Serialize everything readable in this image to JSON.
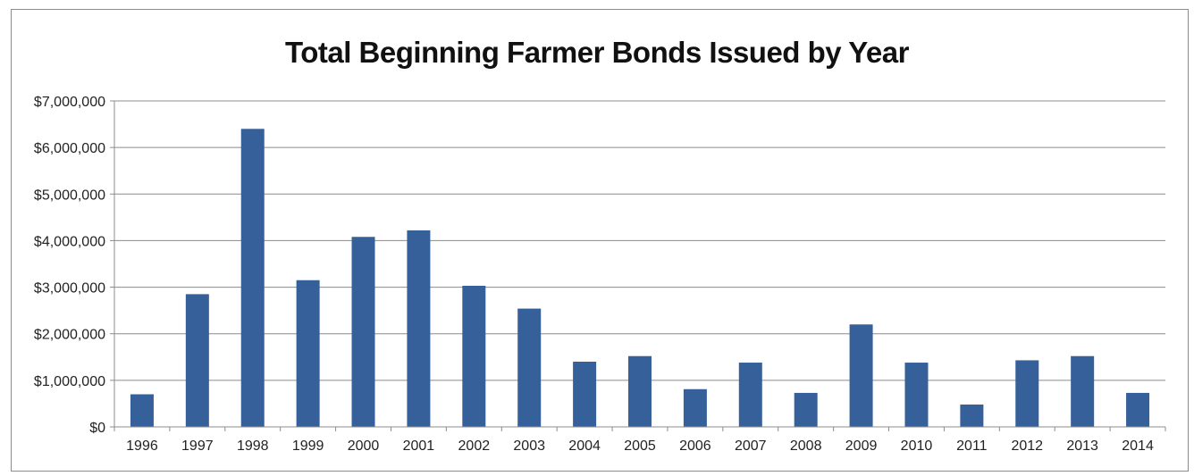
{
  "chart_data": {
    "type": "bar",
    "title": "Total Beginning Farmer Bonds Issued by Year",
    "xlabel": "",
    "ylabel": "",
    "ylim": [
      0,
      7000000
    ],
    "yticks": [
      0,
      1000000,
      2000000,
      3000000,
      4000000,
      5000000,
      6000000,
      7000000
    ],
    "ytick_labels": [
      "$0",
      "$1,000,000",
      "$2,000,000",
      "$3,000,000",
      "$4,000,000",
      "$5,000,000",
      "$6,000,000",
      "$7,000,000"
    ],
    "categories": [
      "1996",
      "1997",
      "1998",
      "1999",
      "2000",
      "2001",
      "2002",
      "2003",
      "2004",
      "2005",
      "2006",
      "2007",
      "2008",
      "2009",
      "2010",
      "2011",
      "2012",
      "2013",
      "2014"
    ],
    "values": [
      700000,
      2850000,
      6400000,
      3150000,
      4080000,
      4220000,
      3030000,
      2540000,
      1400000,
      1520000,
      810000,
      1380000,
      730000,
      2200000,
      1380000,
      480000,
      1430000,
      1520000,
      730000
    ],
    "grid": true,
    "legend": "none",
    "bar_color": "#36609a",
    "grid_color": "#8c8c8c"
  }
}
